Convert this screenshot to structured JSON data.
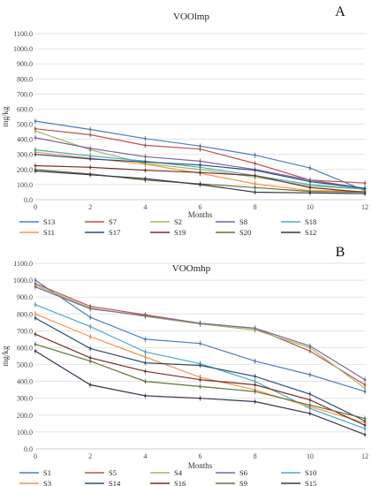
{
  "chart_data": [
    {
      "type": "line",
      "title": "VOOlmp",
      "panel_letter": "A",
      "xlabel": "Months",
      "ylabel": "mg/kg",
      "x": [
        0,
        2,
        4,
        6,
        8,
        10,
        12
      ],
      "x_ticks": [
        "0",
        "2",
        "4",
        "6",
        "8",
        "10",
        "12"
      ],
      "ylim": [
        0,
        1100
      ],
      "y_ticks": [
        "0.0",
        "100.0",
        "200.0",
        "300.0",
        "400.0",
        "500.0",
        "600.0",
        "700.0",
        "800.0",
        "900.0",
        "1000.0",
        "1100.0"
      ],
      "grid": true,
      "legend_position": "bottom",
      "series": [
        {
          "name": "S13",
          "color": "#4a7fc1",
          "values": [
            520,
            465,
            405,
            355,
            295,
            210,
            60
          ]
        },
        {
          "name": "S7",
          "color": "#c0504d",
          "values": [
            470,
            430,
            360,
            335,
            240,
            130,
            110
          ]
        },
        {
          "name": "S2",
          "color": "#9bbb59",
          "values": [
            455,
            330,
            240,
            200,
            150,
            90,
            70
          ]
        },
        {
          "name": "S8",
          "color": "#8064a2",
          "values": [
            410,
            340,
            285,
            255,
            200,
            130,
            75
          ]
        },
        {
          "name": "S18",
          "color": "#4bacc6",
          "values": [
            330,
            290,
            255,
            215,
            160,
            100,
            70
          ]
        },
        {
          "name": "S11",
          "color": "#f79646",
          "values": [
            315,
            275,
            235,
            175,
            105,
            60,
            55
          ]
        },
        {
          "name": "S17",
          "color": "#2c4d75",
          "values": [
            300,
            270,
            250,
            230,
            195,
            120,
            75
          ]
        },
        {
          "name": "S19",
          "color": "#772c2a",
          "values": [
            225,
            215,
            195,
            180,
            160,
            80,
            50
          ]
        },
        {
          "name": "S20",
          "color": "#5f7530",
          "values": [
            200,
            170,
            130,
            105,
            80,
            55,
            50
          ]
        },
        {
          "name": "S12",
          "color": "#403151",
          "values": [
            190,
            165,
            140,
            100,
            50,
            45,
            40
          ]
        }
      ]
    },
    {
      "type": "line",
      "title": "VOOmhp",
      "panel_letter": "B",
      "xlabel": "Months",
      "ylabel": "mg/kg",
      "x": [
        0,
        2,
        4,
        6,
        8,
        10,
        12
      ],
      "x_ticks": [
        "0",
        "2",
        "4",
        "6",
        "8",
        "10",
        "12"
      ],
      "ylim": [
        0,
        1100
      ],
      "y_ticks": [
        "0.0",
        "100.0",
        "200.0",
        "300.0",
        "400.0",
        "500.0",
        "600.0",
        "700.0",
        "800.0",
        "900.0",
        "1000.0",
        "1100.0"
      ],
      "grid": true,
      "legend_position": "bottom",
      "series": [
        {
          "name": "S1",
          "color": "#4a7fc1",
          "values": [
            1000,
            780,
            650,
            625,
            520,
            440,
            340
          ]
        },
        {
          "name": "S5",
          "color": "#c0504d",
          "values": [
            980,
            845,
            795,
            745,
            715,
            580,
            380
          ]
        },
        {
          "name": "S4",
          "color": "#9bbb59",
          "values": [
            970,
            835,
            785,
            740,
            705,
            600,
            360
          ]
        },
        {
          "name": "S6",
          "color": "#8064a2",
          "values": [
            960,
            830,
            790,
            745,
            715,
            610,
            410
          ]
        },
        {
          "name": "S10",
          "color": "#4bacc6",
          "values": [
            855,
            725,
            575,
            505,
            400,
            240,
            120
          ]
        },
        {
          "name": "S3",
          "color": "#f79646",
          "values": [
            800,
            665,
            545,
            425,
            350,
            250,
            155
          ]
        },
        {
          "name": "S14",
          "color": "#2c4d75",
          "values": [
            775,
            595,
            510,
            495,
            430,
            325,
            165
          ]
        },
        {
          "name": "S16",
          "color": "#772c2a",
          "values": [
            680,
            540,
            460,
            410,
            380,
            290,
            140
          ]
        },
        {
          "name": "S9",
          "color": "#5f7530",
          "values": [
            620,
            520,
            400,
            370,
            340,
            260,
            180
          ]
        },
        {
          "name": "S15",
          "color": "#403151",
          "values": [
            580,
            380,
            315,
            300,
            280,
            210,
            85
          ]
        }
      ]
    }
  ]
}
